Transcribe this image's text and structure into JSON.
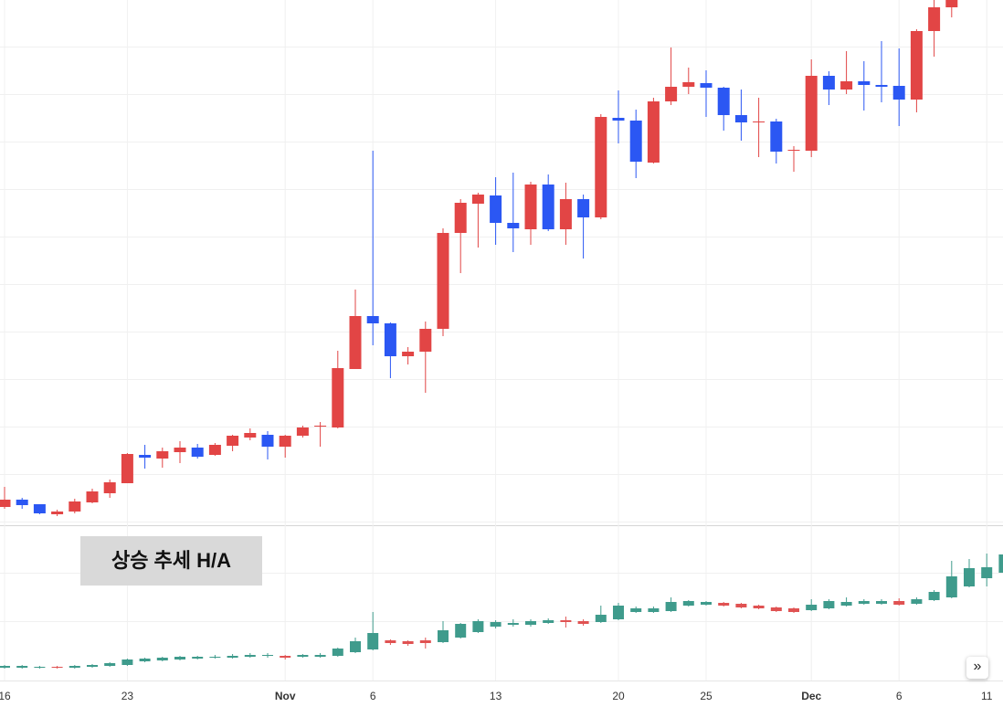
{
  "chart_data": [
    {
      "type": "candlestick",
      "ylim": [
        0,
        575
      ],
      "up_color": "#e24545",
      "down_color": "#2b57f3",
      "open": [
        20,
        28,
        23,
        12,
        15,
        25,
        35,
        46,
        77,
        73,
        80,
        85,
        77,
        87,
        96,
        99,
        86,
        98,
        108,
        107,
        171,
        229,
        221,
        185,
        190,
        215,
        320,
        352,
        361,
        331,
        324,
        373,
        324,
        357,
        337,
        446,
        443,
        397,
        464,
        480,
        484,
        479,
        449,
        441,
        442,
        410,
        410,
        492,
        477,
        486,
        482,
        481,
        466,
        541,
        567,
        null,
        null,
        null
      ],
      "high": [
        42,
        30,
        23,
        17,
        29,
        40,
        50,
        79,
        88,
        85,
        92,
        89,
        90,
        99,
        106,
        103,
        99,
        109,
        113,
        191,
        258,
        410,
        222,
        195,
        223,
        325,
        357,
        364,
        381,
        386,
        376,
        384,
        375,
        362,
        450,
        476,
        455,
        468,
        523,
        501,
        498,
        480,
        477,
        468,
        445,
        415,
        510,
        497,
        519,
        508,
        530,
        522,
        543,
        575,
        575,
        null,
        null,
        null
      ],
      "low": [
        18,
        18,
        12,
        10,
        13,
        24,
        30,
        46,
        62,
        63,
        68,
        73,
        76,
        81,
        93,
        72,
        74,
        96,
        86,
        106,
        171,
        197,
        161,
        176,
        145,
        207,
        276,
        304,
        307,
        299,
        307,
        322,
        307,
        292,
        335,
        418,
        380,
        396,
        460,
        472,
        447,
        432,
        421,
        403,
        396,
        387,
        403,
        460,
        472,
        454,
        463,
        437,
        452,
        513,
        556,
        null,
        null,
        null
      ],
      "close": [
        28,
        22,
        13,
        15,
        26,
        37,
        47,
        78,
        74,
        81,
        85,
        75,
        88,
        98,
        101,
        86,
        98,
        107,
        109,
        172,
        229,
        221,
        185,
        190,
        215,
        320,
        353,
        362,
        331,
        325,
        373,
        324,
        357,
        337,
        447,
        443,
        398,
        464,
        480,
        485,
        479,
        449,
        441,
        442,
        409,
        411,
        492,
        477,
        486,
        482,
        480,
        466,
        541,
        567,
        575,
        null,
        null,
        null
      ]
    },
    {
      "type": "candlestick",
      "title": "상승 추세 H/A",
      "ylim": [
        0,
        162
      ],
      "up_color": "#3f9b8c",
      "down_color": "#e05252",
      "categories": [
        "16",
        null,
        null,
        null,
        null,
        null,
        null,
        "23",
        null,
        null,
        null,
        null,
        null,
        null,
        null,
        null,
        "Nov",
        null,
        null,
        null,
        null,
        "6",
        null,
        null,
        null,
        null,
        null,
        null,
        "13",
        null,
        null,
        null,
        null,
        null,
        null,
        "20",
        null,
        null,
        null,
        null,
        "25",
        null,
        null,
        null,
        null,
        null,
        "Dec",
        null,
        null,
        null,
        null,
        "6",
        null,
        null,
        null,
        null,
        "11",
        null
      ],
      "open": [
        9,
        9,
        9,
        10,
        9,
        10,
        11,
        12,
        16,
        17,
        18,
        19,
        20,
        20,
        21,
        22,
        22,
        21,
        21,
        22,
        26,
        29,
        39,
        38,
        39,
        37,
        42,
        48,
        54,
        56,
        56,
        58,
        61,
        60,
        59,
        62,
        70,
        70,
        71,
        77,
        78,
        80,
        79,
        77,
        75,
        74,
        72,
        74,
        77,
        79,
        79,
        82,
        79,
        83,
        86,
        98,
        107,
        113
      ],
      "high": [
        12,
        12,
        11,
        11,
        12,
        13,
        15,
        19,
        20,
        21,
        22,
        22,
        23,
        24,
        25,
        25,
        23,
        24,
        25,
        31,
        42,
        70,
        40,
        39,
        42,
        60,
        58,
        62,
        61,
        62,
        62,
        63,
        65,
        62,
        77,
        80,
        76,
        76,
        86,
        83,
        82,
        81,
        80,
        78,
        76,
        75,
        84,
        84,
        86,
        84,
        84,
        85,
        86,
        94,
        126,
        128,
        134,
        135
      ],
      "low": [
        8,
        8,
        8,
        8,
        8,
        9,
        10,
        11,
        15,
        16,
        17,
        18,
        19,
        19,
        20,
        20,
        18,
        20,
        20,
        21,
        25,
        28,
        34,
        33,
        30,
        36,
        41,
        47,
        52,
        54,
        54,
        57,
        53,
        55,
        58,
        61,
        69,
        69,
        70,
        76,
        77,
        76,
        74,
        73,
        70,
        69,
        71,
        73,
        76,
        78,
        78,
        77,
        78,
        82,
        85,
        97,
        98,
        112
      ],
      "close": [
        11,
        11,
        10,
        9,
        11,
        12,
        14,
        18,
        19,
        20,
        21,
        21,
        21,
        22,
        23,
        23,
        20,
        23,
        23,
        30,
        38,
        47,
        36,
        35,
        36,
        50,
        57,
        60,
        59,
        58,
        60,
        61,
        59,
        57,
        67,
        77,
        74,
        74,
        81,
        82,
        81,
        77,
        75,
        74,
        71,
        70,
        78,
        82,
        81,
        82,
        82,
        78,
        84,
        92,
        109,
        118,
        119,
        133
      ]
    }
  ]
}
